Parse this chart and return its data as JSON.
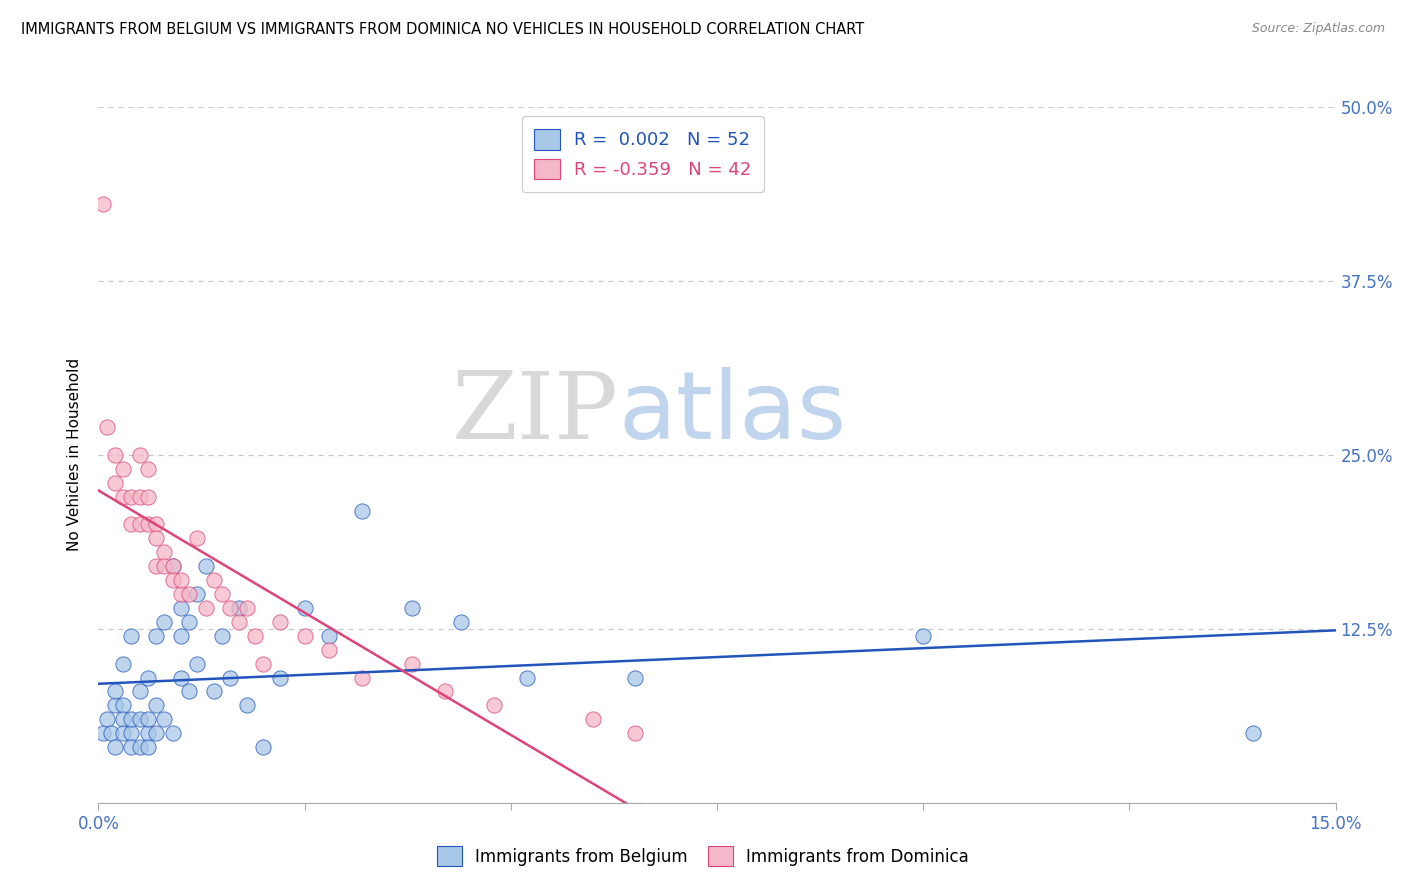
{
  "title": "IMMIGRANTS FROM BELGIUM VS IMMIGRANTS FROM DOMINICA NO VEHICLES IN HOUSEHOLD CORRELATION CHART",
  "source": "Source: ZipAtlas.com",
  "ylabel_label": "No Vehicles in Household",
  "legend_label1": "Immigrants from Belgium",
  "legend_label2": "Immigrants from Dominica",
  "R_belgium": 0.002,
  "N_belgium": 52,
  "R_dominica": -0.359,
  "N_dominica": 42,
  "color_belgium": "#a8c8e8",
  "color_dominica": "#f4b8c8",
  "color_trendline_belgium": "#2255bb",
  "color_trendline_dominica": "#dd4477",
  "watermark_ZIP": "ZIP",
  "watermark_atlas": "atlas",
  "watermark_color_ZIP": "#d8d8d8",
  "watermark_color_atlas": "#c0d4ee",
  "xlim": [
    0.0,
    0.15
  ],
  "ylim": [
    0.0,
    0.5
  ],
  "y_ticks": [
    0.0,
    0.125,
    0.25,
    0.375,
    0.5
  ],
  "y_tick_labels": [
    "",
    "12.5%",
    "25.0%",
    "37.5%",
    "50.0%"
  ],
  "belgium_x": [
    0.0005,
    0.001,
    0.0015,
    0.002,
    0.002,
    0.002,
    0.003,
    0.003,
    0.003,
    0.003,
    0.004,
    0.004,
    0.004,
    0.004,
    0.005,
    0.005,
    0.005,
    0.006,
    0.006,
    0.006,
    0.006,
    0.007,
    0.007,
    0.007,
    0.008,
    0.008,
    0.009,
    0.009,
    0.01,
    0.01,
    0.01,
    0.011,
    0.011,
    0.012,
    0.012,
    0.013,
    0.014,
    0.015,
    0.016,
    0.017,
    0.018,
    0.02,
    0.022,
    0.025,
    0.028,
    0.032,
    0.038,
    0.044,
    0.052,
    0.065,
    0.1,
    0.14
  ],
  "belgium_y": [
    0.05,
    0.06,
    0.05,
    0.07,
    0.08,
    0.04,
    0.07,
    0.06,
    0.1,
    0.05,
    0.05,
    0.06,
    0.12,
    0.04,
    0.06,
    0.04,
    0.08,
    0.05,
    0.06,
    0.04,
    0.09,
    0.05,
    0.07,
    0.12,
    0.06,
    0.13,
    0.05,
    0.17,
    0.12,
    0.14,
    0.09,
    0.08,
    0.13,
    0.1,
    0.15,
    0.17,
    0.08,
    0.12,
    0.09,
    0.14,
    0.07,
    0.04,
    0.09,
    0.14,
    0.12,
    0.21,
    0.14,
    0.13,
    0.09,
    0.09,
    0.12,
    0.05
  ],
  "dominica_x": [
    0.0005,
    0.001,
    0.002,
    0.002,
    0.003,
    0.003,
    0.004,
    0.004,
    0.005,
    0.005,
    0.005,
    0.006,
    0.006,
    0.006,
    0.007,
    0.007,
    0.007,
    0.008,
    0.008,
    0.009,
    0.009,
    0.01,
    0.01,
    0.011,
    0.012,
    0.013,
    0.014,
    0.015,
    0.016,
    0.017,
    0.018,
    0.019,
    0.02,
    0.022,
    0.025,
    0.028,
    0.032,
    0.038,
    0.042,
    0.048,
    0.06,
    0.065
  ],
  "dominica_y": [
    0.43,
    0.27,
    0.25,
    0.23,
    0.24,
    0.22,
    0.22,
    0.2,
    0.25,
    0.22,
    0.2,
    0.24,
    0.22,
    0.2,
    0.2,
    0.19,
    0.17,
    0.18,
    0.17,
    0.17,
    0.16,
    0.15,
    0.16,
    0.15,
    0.19,
    0.14,
    0.16,
    0.15,
    0.14,
    0.13,
    0.14,
    0.12,
    0.1,
    0.13,
    0.12,
    0.11,
    0.09,
    0.1,
    0.08,
    0.07,
    0.06,
    0.05
  ]
}
